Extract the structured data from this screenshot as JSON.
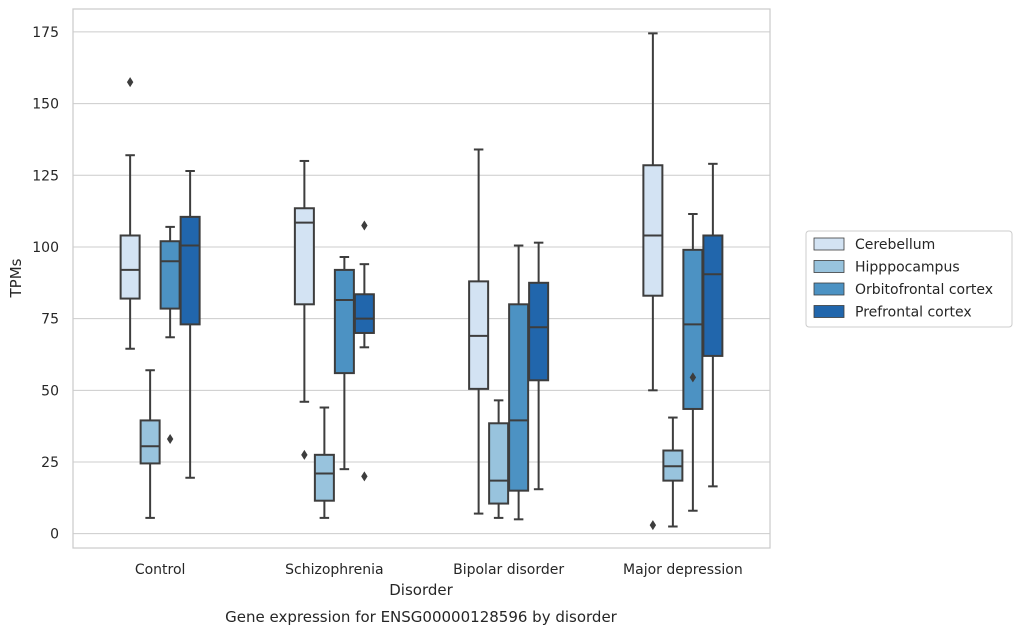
{
  "chart_data": {
    "type": "boxplot",
    "xlabel": "Disorder",
    "ylabel": "TPMs",
    "caption": "Gene expression for ENSG00000128596 by disorder",
    "ylim": [
      -5,
      183
    ],
    "yticks": [
      0,
      25,
      50,
      75,
      100,
      125,
      150,
      175
    ],
    "grid": "horizontal",
    "legend_position": "right",
    "categories": [
      "Control",
      "Schizophrenia",
      "Bipolar disorder",
      "Major depression"
    ],
    "series": [
      {
        "name": "Cerebellum",
        "color": "#d3e3f3",
        "boxes": [
          {
            "whislo": 64.5,
            "q1": 82,
            "med": 92,
            "q3": 104,
            "whishi": 132,
            "fliers": [
              157.5
            ]
          },
          {
            "whislo": 46,
            "q1": 80,
            "med": 108.5,
            "q3": 113.5,
            "whishi": 130,
            "fliers": [
              27.5
            ]
          },
          {
            "whislo": 7,
            "q1": 50.5,
            "med": 69,
            "q3": 88,
            "whishi": 134,
            "fliers": []
          },
          {
            "whislo": 50,
            "q1": 83,
            "med": 104,
            "q3": 128.5,
            "whishi": 174.5,
            "fliers": [
              3
            ]
          }
        ]
      },
      {
        "name": "Hipppocampus",
        "color": "#98c3dd",
        "boxes": [
          {
            "whislo": 5.5,
            "q1": 24.5,
            "med": 30.5,
            "q3": 39.5,
            "whishi": 57,
            "fliers": []
          },
          {
            "whislo": 5.5,
            "q1": 11.5,
            "med": 21,
            "q3": 27.5,
            "whishi": 44,
            "fliers": []
          },
          {
            "whislo": 5.5,
            "q1": 10.5,
            "med": 18.5,
            "q3": 38.5,
            "whishi": 46.5,
            "fliers": []
          },
          {
            "whislo": 2.5,
            "q1": 18.5,
            "med": 23.5,
            "q3": 29,
            "whishi": 40.5,
            "fliers": []
          }
        ]
      },
      {
        "name": "Orbitofrontal cortex",
        "color": "#4c92c3",
        "boxes": [
          {
            "whislo": 68.5,
            "q1": 78.5,
            "med": 95,
            "q3": 102,
            "whishi": 107,
            "fliers": [
              33
            ]
          },
          {
            "whislo": 22.5,
            "q1": 56,
            "med": 81.5,
            "q3": 92,
            "whishi": 96.5,
            "fliers": []
          },
          {
            "whislo": 5,
            "q1": 15,
            "med": 39.5,
            "q3": 80,
            "whishi": 100.5,
            "fliers": []
          },
          {
            "whislo": 8,
            "q1": 43.5,
            "med": 73,
            "q3": 99,
            "whishi": 111.5,
            "fliers": [
              54.5
            ]
          }
        ]
      },
      {
        "name": "Prefrontal cortex",
        "color": "#2166ac",
        "boxes": [
          {
            "whislo": 19.5,
            "q1": 73,
            "med": 100.5,
            "q3": 110.5,
            "whishi": 126.5,
            "fliers": []
          },
          {
            "whislo": 65,
            "q1": 70,
            "med": 75,
            "q3": 83.5,
            "whishi": 94,
            "fliers": [
              107.5,
              20
            ]
          },
          {
            "whislo": 15.5,
            "q1": 53.5,
            "med": 72,
            "q3": 87.5,
            "whishi": 101.5,
            "fliers": []
          },
          {
            "whislo": 16.5,
            "q1": 62,
            "med": 90.5,
            "q3": 104,
            "whishi": 129,
            "fliers": []
          }
        ]
      }
    ]
  }
}
